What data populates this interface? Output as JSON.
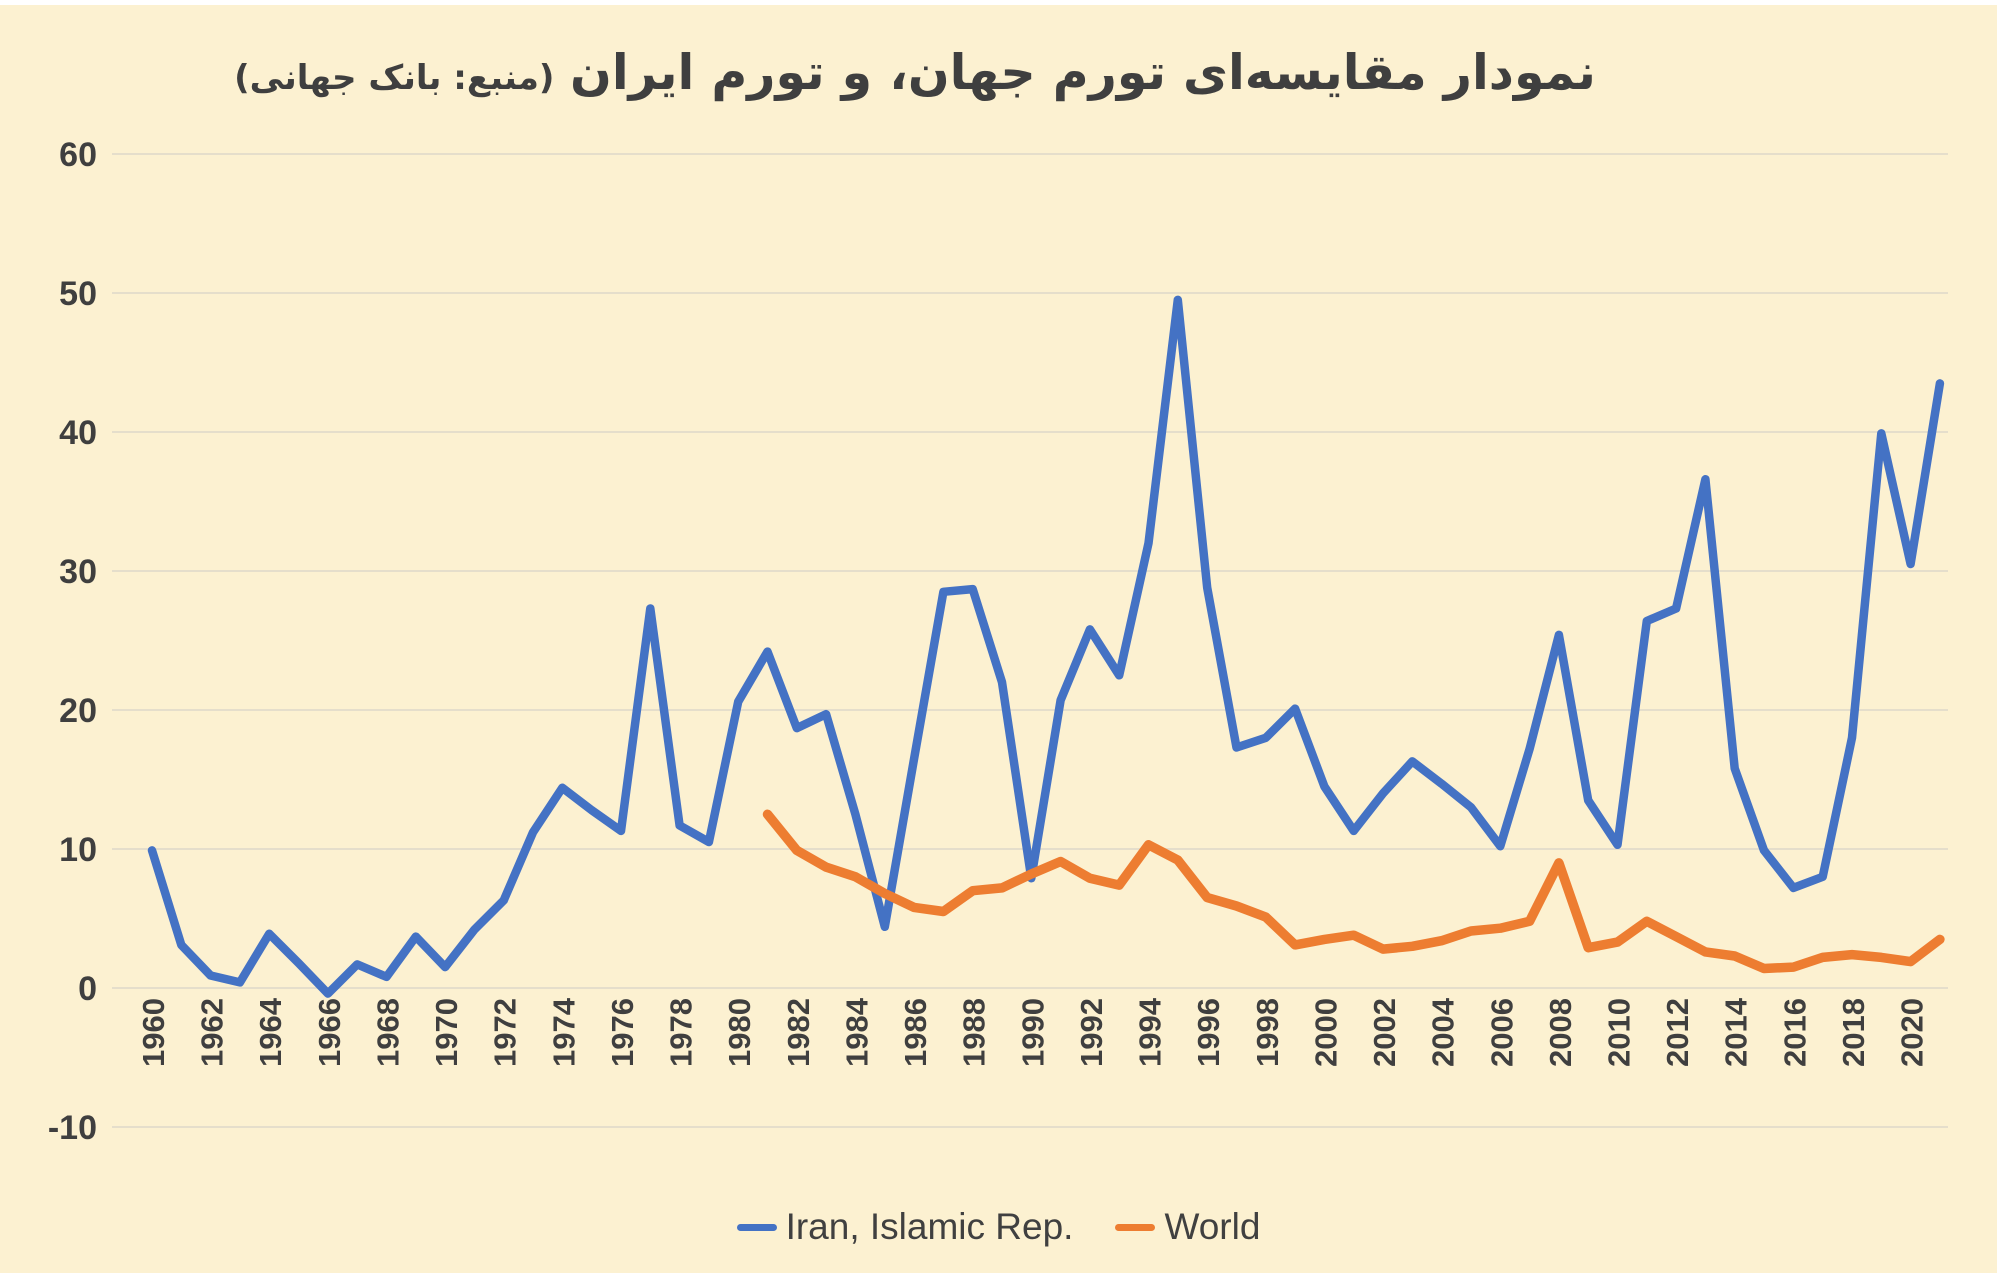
{
  "colors": {
    "background": "#FCF1D1",
    "iran_line": "#4472C4",
    "world_line": "#ED7D31",
    "text": "#3F3F3F",
    "gridline": "#E5DECB"
  },
  "chart_data": {
    "type": "line",
    "title": "نمودار مقایسه‌ای تورم جهان، و تورم ایران (منبع: بانک جهانی)",
    "title_main": "نمودار مقایسه‌ای تورم جهان، و تورم ایران",
    "title_source": "(منبع: بانک جهانی)",
    "xlabel": "",
    "ylabel": "",
    "ylim": [
      -10,
      60
    ],
    "yticks": [
      60,
      50,
      40,
      30,
      20,
      10,
      0,
      -10
    ],
    "xticks": [
      1960,
      1962,
      1964,
      1966,
      1968,
      1970,
      1972,
      1974,
      1976,
      1978,
      1980,
      1982,
      1984,
      1986,
      1988,
      1990,
      1992,
      1994,
      1996,
      1998,
      2000,
      2002,
      2004,
      2006,
      2008,
      2010,
      2012,
      2014,
      2016,
      2018,
      2020
    ],
    "x_range": [
      1960,
      2021
    ],
    "grid": "horizontal-only",
    "legend_position": "bottom-center",
    "series": [
      {
        "name": "Iran, Islamic Rep.",
        "color": "#4472C4",
        "start_year": 1960,
        "values": [
          9.9,
          3.1,
          0.9,
          0.4,
          3.9,
          1.8,
          -0.4,
          1.7,
          0.8,
          3.7,
          1.5,
          4.2,
          6.3,
          11.2,
          14.4,
          12.8,
          11.3,
          27.3,
          11.7,
          10.5,
          20.6,
          24.2,
          18.7,
          19.7,
          12.5,
          4.4,
          16.5,
          28.5,
          28.7,
          22.0,
          7.9,
          20.7,
          25.8,
          22.5,
          32.0,
          49.5,
          28.8,
          17.3,
          18.0,
          20.1,
          14.5,
          11.3,
          14.0,
          16.3,
          14.7,
          13.0,
          10.2,
          17.2,
          25.4,
          13.5,
          10.3,
          26.4,
          27.3,
          36.6,
          15.8,
          9.9,
          7.2,
          8.0,
          18.0,
          39.9,
          30.5,
          43.5
        ]
      },
      {
        "name": "World",
        "color": "#ED7D31",
        "start_year": 1981,
        "values": [
          12.5,
          9.9,
          8.7,
          8.0,
          6.8,
          5.8,
          5.5,
          7.0,
          7.2,
          8.2,
          9.1,
          7.9,
          7.4,
          10.3,
          9.2,
          6.5,
          5.9,
          5.1,
          3.1,
          3.5,
          3.8,
          2.8,
          3.0,
          3.4,
          4.1,
          4.3,
          4.8,
          9.0,
          2.9,
          3.3,
          4.8,
          3.7,
          2.6,
          2.3,
          1.4,
          1.5,
          2.2,
          2.4,
          2.2,
          1.9,
          3.5
        ]
      }
    ]
  }
}
